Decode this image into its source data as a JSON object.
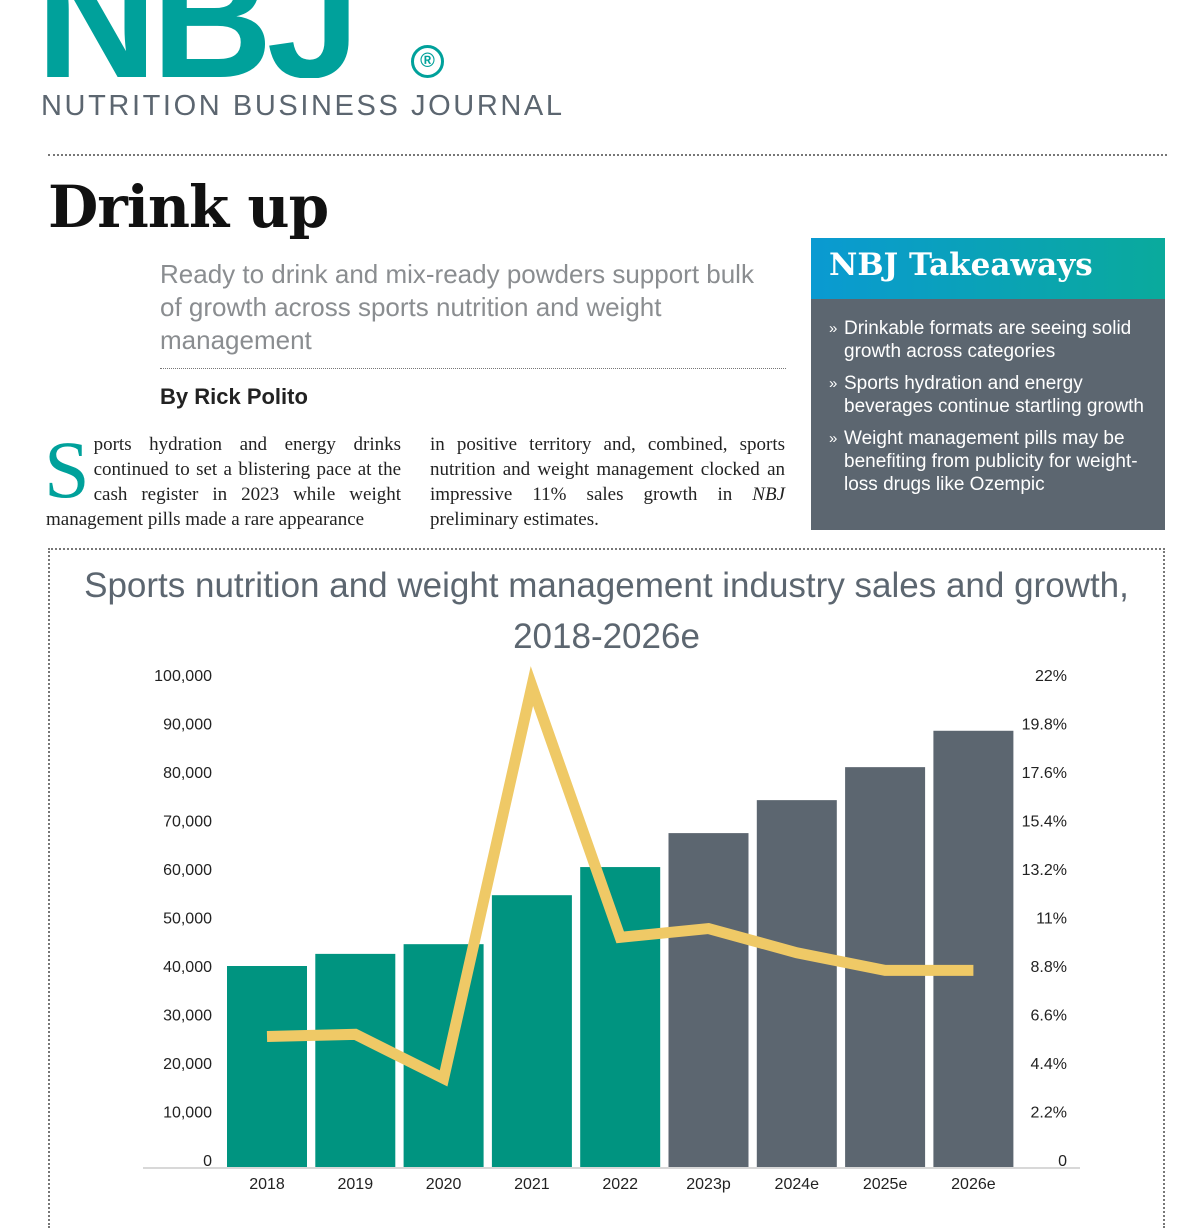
{
  "logo": {
    "mark": "NBJ",
    "registered": "®",
    "name": "NUTRITION BUSINESS JOURNAL"
  },
  "article": {
    "title": "Drink up",
    "subtitle": "Ready to drink and mix-ready powders support bulk of growth across sports nutrition and weight management",
    "byline": "By Rick Polito",
    "dropcap": "S",
    "col1": "ports hydration and energy drinks continued to set a blistering pace at the cash register in 2023 while weight management pills made a rare appearance",
    "col2_pre": "in positive territory and, combined, sports nutrition and weight management clocked an impressive 11% sales growth in ",
    "col2_em": "NBJ",
    "col2_post": " preliminary estimates."
  },
  "takeaways": {
    "title": "NBJ Takeaways",
    "bullet": "»",
    "items": [
      "Drinkable formats are seeing solid growth across categories",
      "Sports hydration and energy beverages continue startling growth",
      "Weight management pills may be benefiting from publicity for weight-loss drugs like Ozempic"
    ]
  },
  "chart_data": {
    "type": "bar",
    "title": "Sports nutrition and weight management industry sales and growth, 2018-2026e",
    "categories": [
      "2018",
      "2019",
      "2020",
      "2021",
      "2022",
      "2023p",
      "2024e",
      "2025e",
      "2026e"
    ],
    "series": [
      {
        "type": "bar",
        "axis": "left",
        "values": [
          40000,
          42500,
          44500,
          54600,
          60400,
          67400,
          74200,
          81000,
          88500
        ],
        "colors": [
          "#009480",
          "#009480",
          "#009480",
          "#009480",
          "#009480",
          "#5c6670",
          "#5c6670",
          "#5c6670",
          "#5c6670"
        ]
      },
      {
        "type": "line",
        "axis": "right",
        "values": [
          5.6,
          5.7,
          3.7,
          21.5,
          10.1,
          10.5,
          9.4,
          8.6,
          8.6
        ],
        "color": "#efc966"
      }
    ],
    "left_axis": {
      "ylim": [
        0,
        100000
      ],
      "ticks": [
        "0",
        "10,000",
        "20,000",
        "30,000",
        "40,000",
        "50,000",
        "60,000",
        "70,000",
        "80,000",
        "90,000",
        "100,000"
      ]
    },
    "right_axis": {
      "ylim": [
        0,
        22
      ],
      "ticks": [
        "0",
        "2.2%",
        "4.4%",
        "6.6%",
        "8.8%",
        "11%",
        "13.2%",
        "15.4%",
        "17.6%",
        "19.8%",
        "22%"
      ]
    },
    "grid": false,
    "legend": "none"
  }
}
